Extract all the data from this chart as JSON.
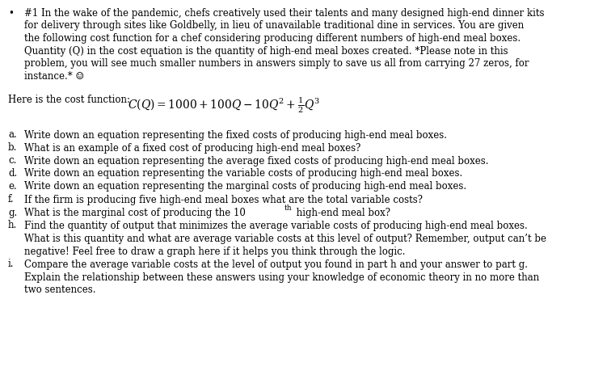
{
  "background_color": "#ffffff",
  "text_color": "#000000",
  "bullet_lines": [
    "#1 In the wake of the pandemic, chefs creatively used their talents and many designed high-end dinner kits",
    "for delivery through sites like Goldbelly, in lieu of unavailable traditional dine in services. You are given",
    "the following cost function for a chef considering producing different numbers of high-end meal boxes.",
    "Quantity (Q) in the cost equation is the quantity of high-end meal boxes created. *Please note in this",
    "problem, you will see much smaller numbers in answers simply to save us all from carrying 27 zeros, for",
    "instance.* ☺"
  ],
  "cost_prefix": "Here is the cost function: ",
  "questions": [
    [
      "a.",
      "Write down an equation representing the fixed costs of producing high-end meal boxes."
    ],
    [
      "b.",
      "What is an example of a fixed cost of producing high-end meal boxes?"
    ],
    [
      "c.",
      "Write down an equation representing the average fixed costs of producing high-end meal boxes."
    ],
    [
      "d.",
      "Write down an equation representing the variable costs of producing high-end meal boxes."
    ],
    [
      "e.",
      "Write down an equation representing the marginal costs of producing high-end meal boxes."
    ],
    [
      "f.",
      "If the firm is producing five high-end meal boxes what are the total variable costs?"
    ],
    [
      "g.",
      "What is the marginal cost of producing the 10",
      "th",
      " high-end meal box?"
    ],
    [
      "h.",
      "Find the quantity of output that minimizes the average variable costs of producing high-end meal boxes.",
      "What is this quantity and what are average variable costs at this level of output? Remember, output can’t be",
      "negative! Feel free to draw a graph here if it helps you think through the logic."
    ],
    [
      "i.",
      "Compare the average variable costs at the level of output you found in part h and your answer to part g.",
      "Explain the relationship between these answers using your knowledge of economic theory in no more than",
      "two sentences."
    ]
  ],
  "font_family": "DejaVu Serif",
  "font_size": 8.5,
  "dpi": 100,
  "figw": 7.3,
  "figh": 4.59
}
